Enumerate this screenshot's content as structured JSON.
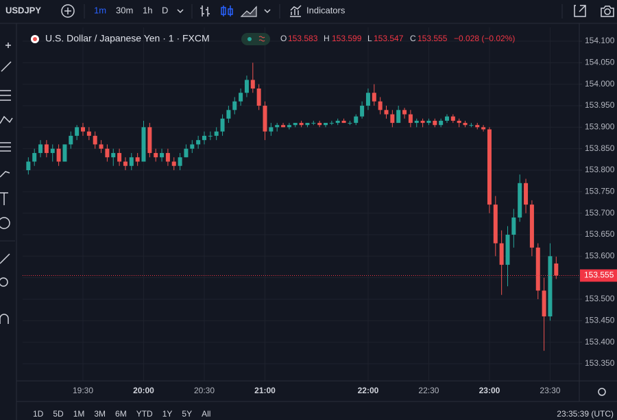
{
  "toolbar": {
    "symbol": "USDJPY",
    "intervals": [
      "1m",
      "30m",
      "1h",
      "D"
    ],
    "indicators": "Indicators"
  },
  "legend": {
    "title": "U.S. Dollar / Japanese Yen · 1 · FXCM",
    "o": "O",
    "h": "H",
    "l": "L",
    "c": "C",
    "change": "−0.028 (−0.02%)"
  },
  "bottom": {
    "ranges": [
      "1D",
      "5D",
      "1M",
      "3M",
      "6M",
      "YTD",
      "1Y",
      "5Y",
      "All"
    ],
    "clock": "23:35:39 (UTC)"
  },
  "chart_data": {
    "type": "candlestick",
    "up_color": "#26a69a",
    "down_color": "#ef5350",
    "grid": true,
    "categories": [
      null,
      null,
      null,
      null,
      null,
      null,
      null,
      null,
      null,
      "19:30",
      null,
      null,
      null,
      null,
      null,
      null,
      null,
      null,
      null,
      "20:00",
      null,
      null,
      null,
      null,
      null,
      null,
      null,
      null,
      null,
      "20:30",
      null,
      null,
      null,
      null,
      null,
      null,
      null,
      null,
      null,
      "21:00",
      null,
      null,
      null,
      null,
      null,
      null,
      null,
      null,
      null,
      null,
      null,
      null,
      null,
      null,
      null,
      null,
      "22:00",
      null,
      null,
      null,
      null,
      null,
      null,
      null,
      null,
      null,
      "22:30",
      null,
      null,
      null,
      null,
      null,
      null,
      null,
      null,
      null,
      "23:00",
      null,
      null,
      null,
      null,
      null,
      null,
      null,
      null,
      null,
      "23:30",
      null
    ],
    "open": [
      153.8,
      153.82,
      153.84,
      153.86,
      153.84,
      153.85,
      153.82,
      153.86,
      153.88,
      153.9,
      153.89,
      153.88,
      153.86,
      153.85,
      153.83,
      153.84,
      153.82,
      153.81,
      153.83,
      153.82,
      153.9,
      153.84,
      153.83,
      153.84,
      153.82,
      153.81,
      153.83,
      153.85,
      153.86,
      153.87,
      153.88,
      153.88,
      153.89,
      153.92,
      153.94,
      153.96,
      153.98,
      154.01,
      153.99,
      153.95,
      153.89,
      153.9,
      153.905,
      153.9,
      153.905,
      153.91,
      153.905,
      153.91,
      153.91,
      153.905,
      153.91,
      153.91,
      153.915,
      153.91,
      153.91,
      153.925,
      153.95,
      153.98,
      153.96,
      153.94,
      153.93,
      153.91,
      153.94,
      153.93,
      153.91,
      153.915,
      153.91,
      153.915,
      153.905,
      153.915,
      153.925,
      153.915,
      153.91,
      153.905,
      153.905,
      153.9,
      153.895,
      153.72,
      153.63,
      153.58,
      153.65,
      153.69,
      153.77,
      153.72,
      153.62,
      153.52,
      153.46,
      153.583
    ],
    "high": [
      153.83,
      153.85,
      153.87,
      153.87,
      153.86,
      153.86,
      153.86,
      153.89,
      153.905,
      153.91,
      153.9,
      153.89,
      153.87,
      153.86,
      153.85,
      153.85,
      153.83,
      153.84,
      153.84,
      153.915,
      153.91,
      153.85,
      153.85,
      153.85,
      153.83,
      153.84,
      153.86,
      153.87,
      153.88,
      153.89,
      153.89,
      153.9,
      153.93,
      153.95,
      153.97,
      153.99,
      154.02,
      154.05,
      154.0,
      153.96,
      153.91,
      153.91,
      153.91,
      153.91,
      153.91,
      153.915,
      153.91,
      153.915,
      153.915,
      153.91,
      153.915,
      153.92,
      153.92,
      153.915,
      153.93,
      153.96,
      153.99,
      154.0,
      153.97,
      153.95,
      153.94,
      153.95,
      153.945,
      153.94,
      153.92,
      153.92,
      153.92,
      153.92,
      153.92,
      153.93,
      153.93,
      153.92,
      153.915,
      153.91,
      153.91,
      153.905,
      153.9,
      153.74,
      153.66,
      153.67,
      153.71,
      153.79,
      153.78,
      153.73,
      153.63,
      153.55,
      153.63,
      153.599
    ],
    "low": [
      153.79,
      153.81,
      153.83,
      153.83,
      153.82,
      153.81,
      153.82,
      153.85,
      153.87,
      153.88,
      153.87,
      153.85,
      153.84,
      153.82,
      153.81,
      153.81,
      153.8,
      153.8,
      153.81,
      153.82,
      153.83,
      153.82,
      153.82,
      153.81,
      153.8,
      153.8,
      153.83,
      153.84,
      153.85,
      153.86,
      153.87,
      153.87,
      153.88,
      153.91,
      153.93,
      153.95,
      153.97,
      153.98,
      153.94,
      153.87,
      153.88,
      153.89,
      153.9,
      153.895,
      153.9,
      153.9,
      153.9,
      153.905,
      153.9,
      153.9,
      153.905,
      153.905,
      153.91,
      153.905,
      153.905,
      153.92,
      153.94,
      153.95,
      153.93,
      153.92,
      153.9,
      153.91,
      153.92,
      153.9,
      153.9,
      153.9,
      153.905,
      153.9,
      153.9,
      153.91,
      153.91,
      153.9,
      153.9,
      153.9,
      153.895,
      153.89,
      153.7,
      153.6,
      153.51,
      153.53,
      153.62,
      153.68,
      153.7,
      153.6,
      153.5,
      153.38,
      153.45,
      153.547
    ],
    "close": [
      153.82,
      153.84,
      153.86,
      153.84,
      153.85,
      153.82,
      153.86,
      153.88,
      153.9,
      153.89,
      153.88,
      153.86,
      153.85,
      153.83,
      153.84,
      153.82,
      153.81,
      153.83,
      153.82,
      153.9,
      153.84,
      153.83,
      153.84,
      153.82,
      153.81,
      153.83,
      153.85,
      153.86,
      153.87,
      153.88,
      153.88,
      153.89,
      153.92,
      153.94,
      153.96,
      153.98,
      154.01,
      153.99,
      153.95,
      153.89,
      153.9,
      153.905,
      153.9,
      153.905,
      153.91,
      153.905,
      153.91,
      153.91,
      153.905,
      153.91,
      153.91,
      153.915,
      153.91,
      153.91,
      153.925,
      153.95,
      153.98,
      153.96,
      153.94,
      153.93,
      153.91,
      153.94,
      153.93,
      153.91,
      153.915,
      153.91,
      153.915,
      153.905,
      153.915,
      153.925,
      153.915,
      153.91,
      153.905,
      153.905,
      153.9,
      153.895,
      153.72,
      153.63,
      153.58,
      153.65,
      153.69,
      153.77,
      153.72,
      153.62,
      153.52,
      153.46,
      153.6,
      153.555
    ],
    "ylim": [
      153.31,
      154.132
    ],
    "yticks": [
      {
        "value": 154.1,
        "label": "154.100"
      },
      {
        "value": 154.05,
        "label": "154.050"
      },
      {
        "value": 154.0,
        "label": "154.000"
      },
      {
        "value": 153.95,
        "label": "153.950"
      },
      {
        "value": 153.9,
        "label": "153.900"
      },
      {
        "value": 153.85,
        "label": "153.850"
      },
      {
        "value": 153.8,
        "label": "153.800"
      },
      {
        "value": 153.75,
        "label": "153.750"
      },
      {
        "value": 153.7,
        "label": "153.700"
      },
      {
        "value": 153.65,
        "label": "153.650"
      },
      {
        "value": 153.6,
        "label": "153.600"
      },
      {
        "value": 153.55,
        "label": "153.550"
      },
      {
        "value": 153.5,
        "label": "153.500"
      },
      {
        "value": 153.45,
        "label": "153.450"
      },
      {
        "value": 153.4,
        "label": "153.400"
      },
      {
        "value": 153.35,
        "label": "153.350"
      }
    ]
  }
}
